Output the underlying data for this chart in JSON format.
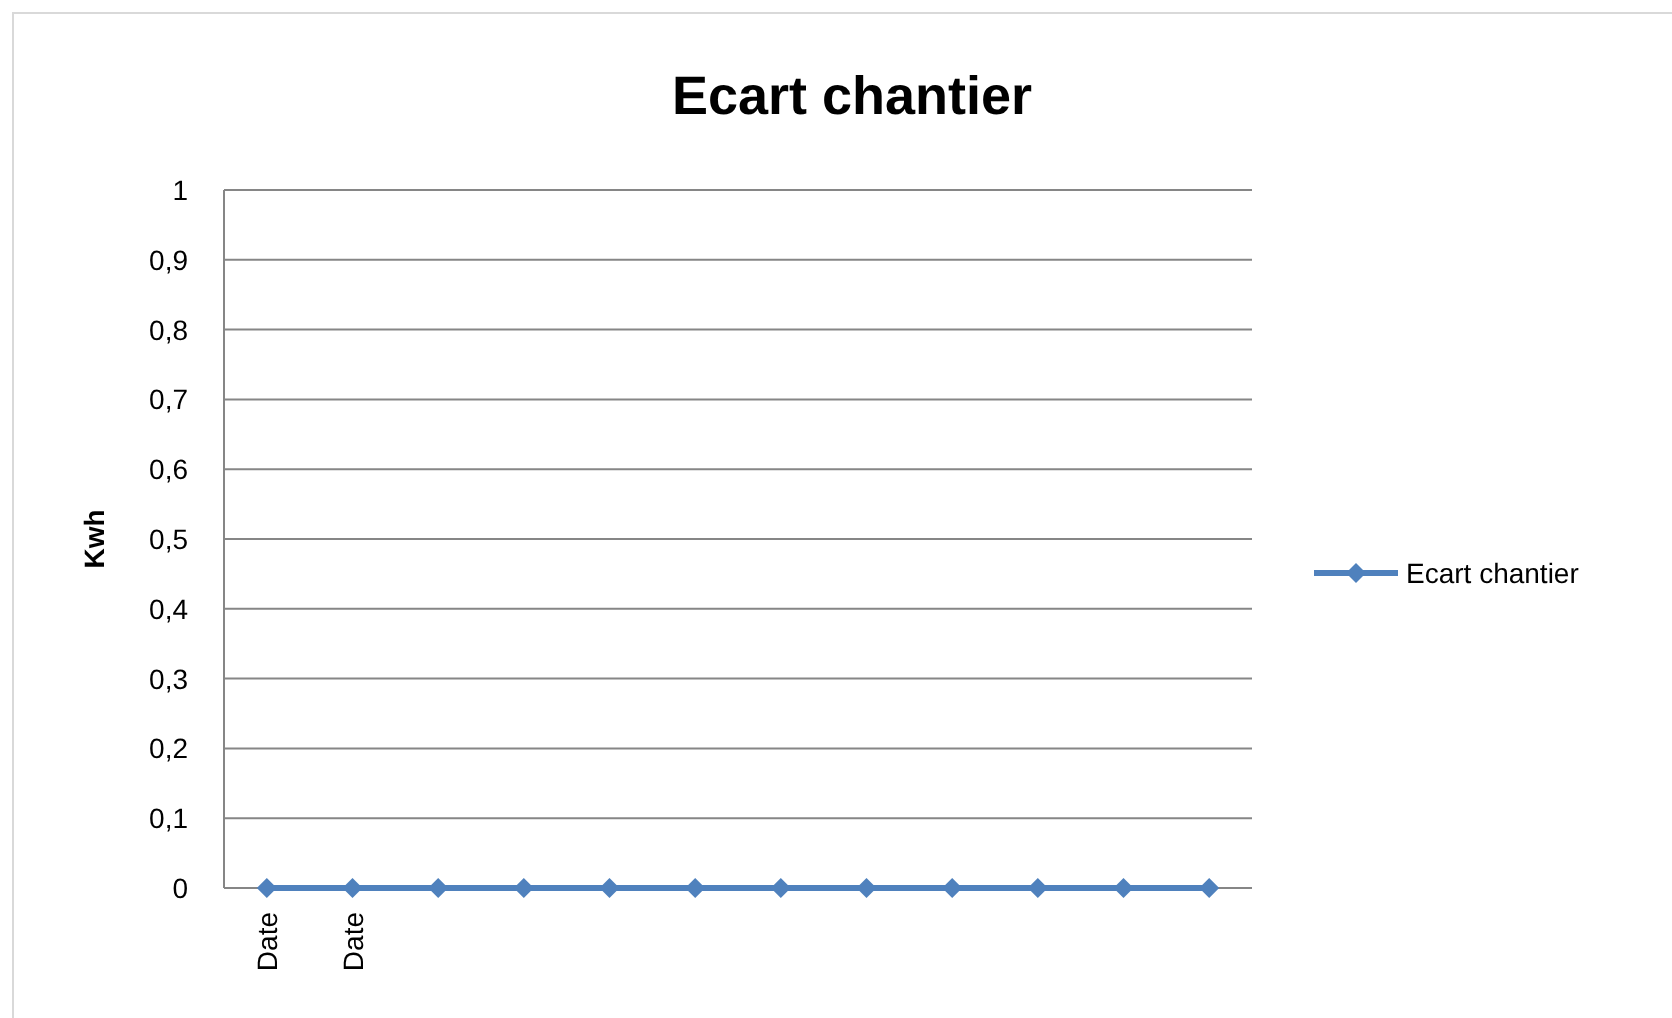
{
  "chart_data": {
    "type": "line",
    "title": "Ecart chantier",
    "ylabel": "Kwh",
    "categories": [
      "Date",
      "Date",
      null,
      null,
      null,
      null,
      null,
      null,
      null,
      null,
      null,
      null
    ],
    "series": [
      {
        "name": "Ecart chantier",
        "color": "#4f81bd",
        "values": [
          0,
          0,
          0,
          0,
          0,
          0,
          0,
          0,
          0,
          0,
          0,
          0
        ]
      }
    ],
    "ylim": [
      0,
      1
    ],
    "yticks": [
      0,
      {
        "value": 0.1,
        "label": "0,1"
      },
      {
        "value": 0.2,
        "label": "0,2"
      },
      {
        "value": 0.3,
        "label": "0,3"
      },
      {
        "value": 0.4,
        "label": "0,4"
      },
      {
        "value": 0.5,
        "label": "0,5"
      },
      {
        "value": 0.6,
        "label": "0,6"
      },
      {
        "value": 0.7,
        "label": "0,7"
      },
      {
        "value": 0.8,
        "label": "0,8"
      },
      {
        "value": 0.9,
        "label": "0,9"
      },
      1
    ],
    "grid": "y",
    "legend": "right",
    "marker": "diamond",
    "line_style": "solid"
  }
}
